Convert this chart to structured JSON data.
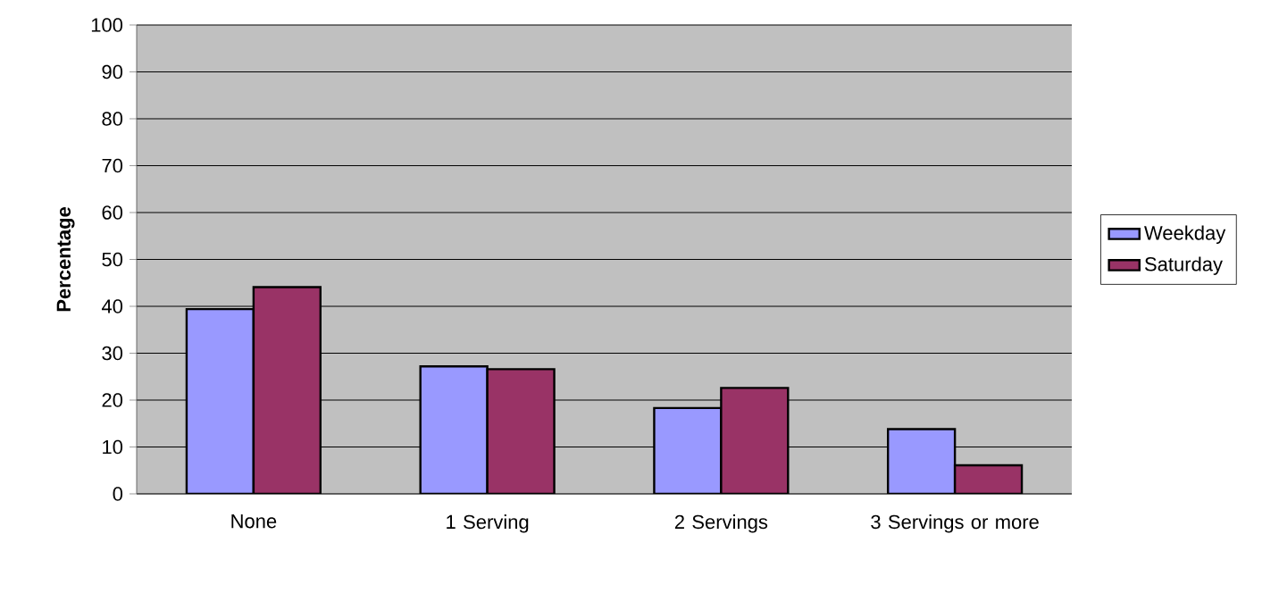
{
  "chart_data": {
    "type": "bar",
    "ylabel": "Percentage",
    "categories": [
      "None",
      "1 Serving",
      "2 Servings",
      "3 Servings or more"
    ],
    "series": [
      {
        "name": "Weekday",
        "color": "#9999ff",
        "values": [
          39.4,
          27.2,
          18.3,
          13.8
        ]
      },
      {
        "name": "Saturday",
        "color": "#993366",
        "values": [
          44.1,
          26.6,
          22.6,
          6.1
        ]
      }
    ],
    "ylim": [
      0,
      100
    ],
    "yticks": [
      0,
      10,
      20,
      30,
      40,
      50,
      60,
      70,
      80,
      90,
      100
    ],
    "grid": "y",
    "legend": "right"
  }
}
